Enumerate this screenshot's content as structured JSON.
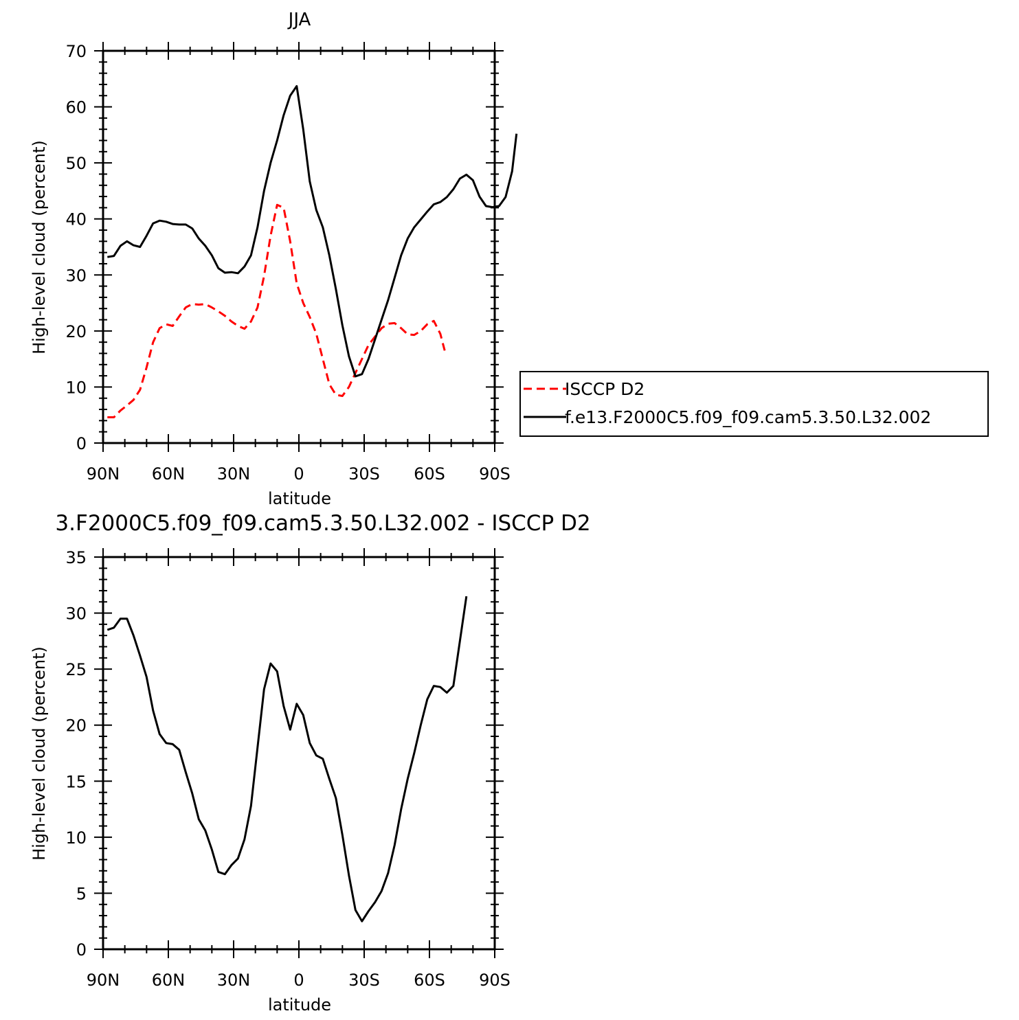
{
  "chart_data": [
    {
      "type": "line",
      "title": "JJA",
      "xlabel": "latitude",
      "ylabel": "High-level cloud (percent)",
      "xlim": [
        90,
        -90
      ],
      "ylim": [
        0,
        70
      ],
      "xticks": [
        90,
        60,
        30,
        0,
        -30,
        -60,
        -90
      ],
      "xtick_labels": [
        "90N",
        "60N",
        "30N",
        "0",
        "30S",
        "60S",
        "90S"
      ],
      "yticks": [
        0,
        10,
        20,
        30,
        40,
        50,
        60,
        70
      ],
      "ytick_labels": [
        "0",
        "10",
        "20",
        "30",
        "40",
        "50",
        "60",
        "70"
      ],
      "legend": "right",
      "series": [
        {
          "name": "ISCCP D2",
          "color": "#ff0000",
          "dash": "dashed",
          "points": [
            [
              88,
              4.6
            ],
            [
              85,
              4.6
            ],
            [
              82,
              5.8
            ],
            [
              79,
              6.7
            ],
            [
              76,
              7.7
            ],
            [
              73,
              9.5
            ],
            [
              70,
              13.5
            ],
            [
              67,
              18.0
            ],
            [
              64,
              20.5
            ],
            [
              61,
              21.2
            ],
            [
              58,
              20.9
            ],
            [
              55,
              22.6
            ],
            [
              52,
              24.2
            ],
            [
              49,
              24.8
            ],
            [
              46,
              24.7
            ],
            [
              43,
              24.8
            ],
            [
              40,
              24.2
            ],
            [
              37,
              23.5
            ],
            [
              34,
              22.7
            ],
            [
              31,
              21.7
            ],
            [
              28,
              20.9
            ],
            [
              25,
              20.4
            ],
            [
              22,
              21.7
            ],
            [
              19,
              24.2
            ],
            [
              16,
              29.8
            ],
            [
              13,
              37.0
            ],
            [
              10,
              42.5
            ],
            [
              7,
              42.0
            ],
            [
              4,
              36.0
            ],
            [
              1,
              28.5
            ],
            [
              -2,
              25.0
            ],
            [
              -5,
              22.5
            ],
            [
              -8,
              19.5
            ],
            [
              -11,
              15.0
            ],
            [
              -14,
              10.5
            ],
            [
              -17,
              8.6
            ],
            [
              -20,
              8.4
            ],
            [
              -23,
              10.0
            ],
            [
              -26,
              12.5
            ],
            [
              -29,
              15.0
            ],
            [
              -32,
              17.5
            ],
            [
              -35,
              19.0
            ],
            [
              -38,
              20.5
            ],
            [
              -41,
              21.3
            ],
            [
              -44,
              21.4
            ],
            [
              -47,
              20.5
            ],
            [
              -50,
              19.4
            ],
            [
              -53,
              19.3
            ],
            [
              -56,
              20.0
            ],
            [
              -59,
              21.2
            ],
            [
              -62,
              21.8
            ],
            [
              -65,
              19.5
            ],
            [
              -67,
              16.5
            ]
          ]
        },
        {
          "name": "f.e13.F2000C5.f09_f09.cam5.3.50.L32.002",
          "color": "#000000",
          "dash": "solid",
          "points": [
            [
              88,
              33.2
            ],
            [
              85,
              33.4
            ],
            [
              82,
              35.2
            ],
            [
              79,
              36.0
            ],
            [
              76,
              35.3
            ],
            [
              73,
              35.0
            ],
            [
              70,
              37.0
            ],
            [
              67,
              39.2
            ],
            [
              64,
              39.7
            ],
            [
              61,
              39.5
            ],
            [
              58,
              39.1
            ],
            [
              55,
              39.0
            ],
            [
              52,
              39.0
            ],
            [
              49,
              38.3
            ],
            [
              46,
              36.5
            ],
            [
              43,
              35.2
            ],
            [
              40,
              33.5
            ],
            [
              37,
              31.2
            ],
            [
              34,
              30.4
            ],
            [
              31,
              30.5
            ],
            [
              28,
              30.3
            ],
            [
              25,
              31.5
            ],
            [
              22,
              33.5
            ],
            [
              19,
              38.5
            ],
            [
              16,
              45.0
            ],
            [
              13,
              50.0
            ],
            [
              10,
              54.0
            ],
            [
              7,
              58.5
            ],
            [
              4,
              62.0
            ],
            [
              1,
              63.7
            ],
            [
              -2,
              56.0
            ],
            [
              -5,
              46.7
            ],
            [
              -8,
              41.6
            ],
            [
              -11,
              38.5
            ],
            [
              -14,
              33.5
            ],
            [
              -17,
              27.5
            ],
            [
              -20,
              21.0
            ],
            [
              -23,
              15.5
            ],
            [
              -26,
              11.9
            ],
            [
              -29,
              12.3
            ],
            [
              -32,
              15.0
            ],
            [
              -35,
              18.5
            ],
            [
              -38,
              22.0
            ],
            [
              -41,
              25.5
            ],
            [
              -44,
              29.5
            ],
            [
              -47,
              33.5
            ],
            [
              -50,
              36.5
            ],
            [
              -53,
              38.5
            ],
            [
              -56,
              39.9
            ],
            [
              -59,
              41.3
            ],
            [
              -62,
              42.6
            ],
            [
              -65,
              43.0
            ],
            [
              -68,
              43.9
            ],
            [
              -71,
              45.3
            ],
            [
              -74,
              47.2
            ],
            [
              -77,
              47.9
            ],
            [
              -80,
              46.9
            ],
            [
              -83,
              44.0
            ],
            [
              -86,
              42.3
            ],
            [
              -89,
              42.1
            ],
            [
              -92,
              42.3
            ],
            [
              -95,
              43.9
            ],
            [
              -98,
              48.5
            ],
            [
              -100,
              55.2
            ]
          ]
        }
      ]
    },
    {
      "type": "line",
      "title": "3.F2000C5.f09_f09.cam5.3.50.L32.002 - ISCCP D2",
      "xlabel": "latitude",
      "ylabel": "High-level cloud (percent)",
      "xlim": [
        90,
        -90
      ],
      "ylim": [
        0,
        35
      ],
      "xticks": [
        90,
        60,
        30,
        0,
        -30,
        -60,
        -90
      ],
      "xtick_labels": [
        "90N",
        "60N",
        "30N",
        "0",
        "30S",
        "60S",
        "90S"
      ],
      "yticks": [
        0,
        5,
        10,
        15,
        20,
        25,
        30,
        35
      ],
      "ytick_labels": [
        "0",
        "5",
        "10",
        "15",
        "20",
        "25",
        "30",
        "35"
      ],
      "series": [
        {
          "color": "#000000",
          "dash": "solid",
          "points": [
            [
              88,
              28.5
            ],
            [
              85,
              28.7
            ],
            [
              82,
              29.5
            ],
            [
              79,
              29.5
            ],
            [
              76,
              28.0
            ],
            [
              73,
              26.2
            ],
            [
              70,
              24.3
            ],
            [
              67,
              21.3
            ],
            [
              64,
              19.2
            ],
            [
              61,
              18.4
            ],
            [
              58,
              18.3
            ],
            [
              55,
              17.8
            ],
            [
              52,
              15.8
            ],
            [
              49,
              13.9
            ],
            [
              46,
              11.6
            ],
            [
              43,
              10.6
            ],
            [
              40,
              8.9
            ],
            [
              37,
              6.9
            ],
            [
              34,
              6.7
            ],
            [
              31,
              7.5
            ],
            [
              28,
              8.1
            ],
            [
              25,
              9.8
            ],
            [
              22,
              12.8
            ],
            [
              19,
              18.0
            ],
            [
              16,
              23.2
            ],
            [
              13,
              25.5
            ],
            [
              10,
              24.8
            ],
            [
              7,
              21.7
            ],
            [
              4,
              19.6
            ],
            [
              1,
              21.9
            ],
            [
              -2,
              20.9
            ],
            [
              -5,
              18.4
            ],
            [
              -8,
              17.3
            ],
            [
              -11,
              17.0
            ],
            [
              -14,
              15.2
            ],
            [
              -17,
              13.5
            ],
            [
              -20,
              10.2
            ],
            [
              -23,
              6.6
            ],
            [
              -26,
              3.5
            ],
            [
              -29,
              2.5
            ],
            [
              -32,
              3.4
            ],
            [
              -35,
              4.2
            ],
            [
              -38,
              5.2
            ],
            [
              -41,
              6.8
            ],
            [
              -44,
              9.3
            ],
            [
              -47,
              12.5
            ],
            [
              -50,
              15.2
            ],
            [
              -53,
              17.5
            ],
            [
              -56,
              20.0
            ],
            [
              -59,
              22.3
            ],
            [
              -62,
              23.5
            ],
            [
              -65,
              23.4
            ],
            [
              -68,
              22.9
            ],
            [
              -71,
              23.5
            ],
            [
              -74,
              27.5
            ],
            [
              -77,
              31.5
            ]
          ]
        }
      ]
    }
  ]
}
